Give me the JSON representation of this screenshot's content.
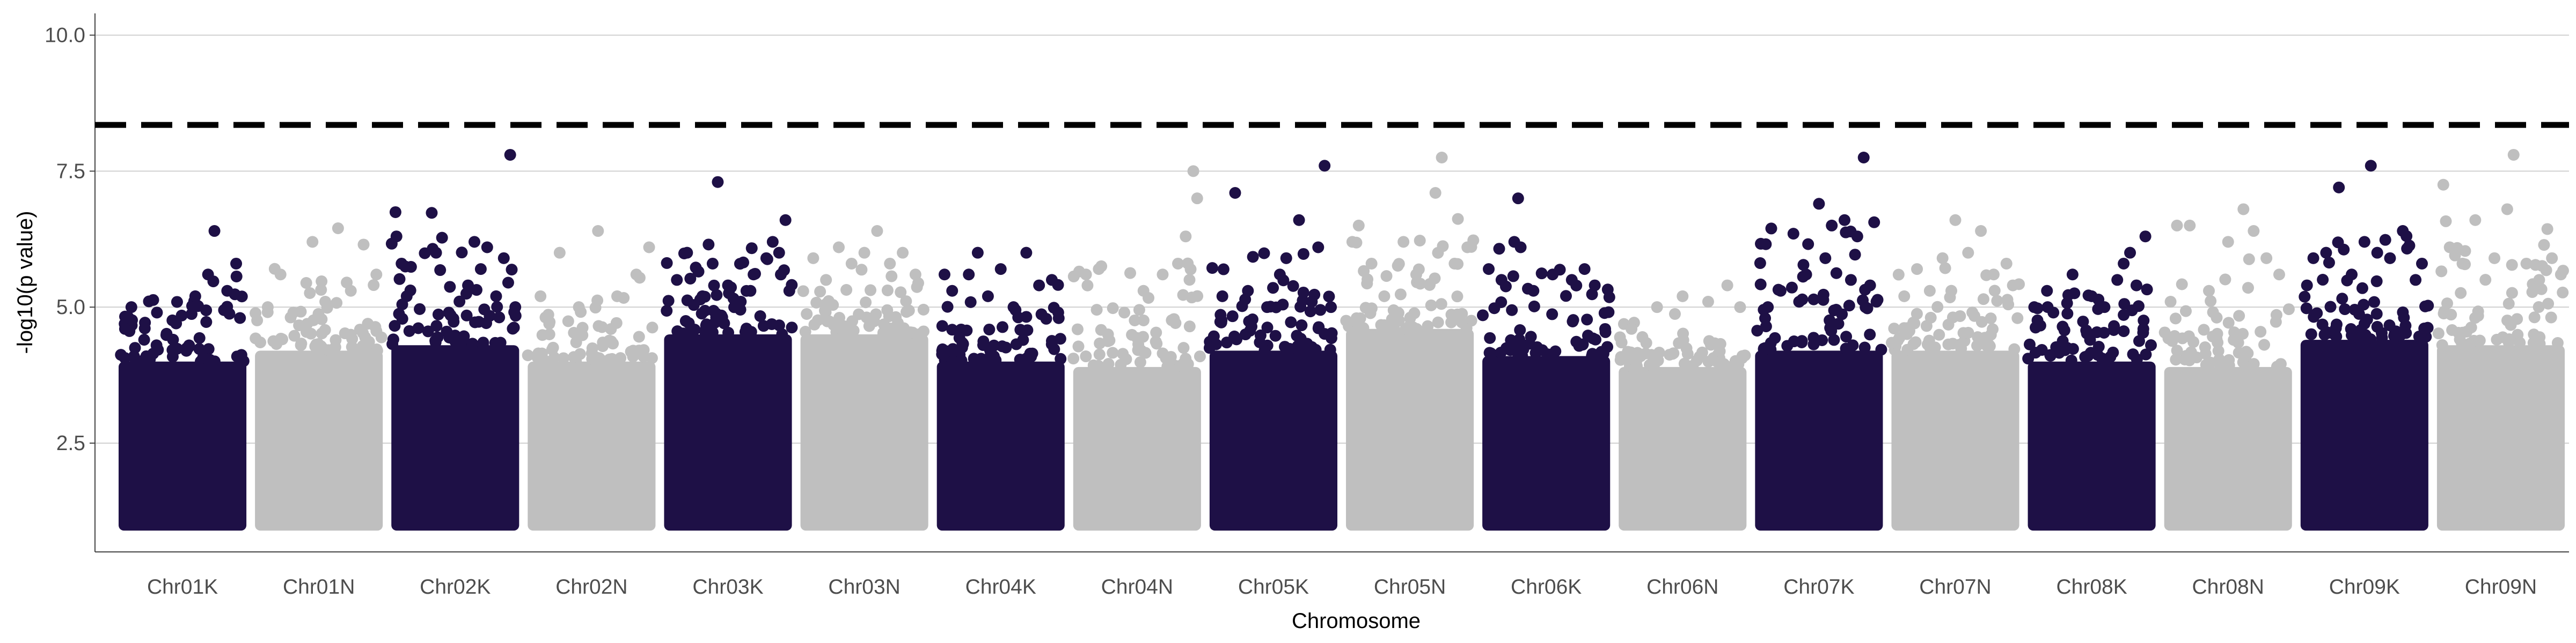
{
  "chart_data": {
    "type": "scatter",
    "subtype": "manhattan",
    "title": "",
    "xlabel": "Chromosome",
    "ylabel": "-log10(p value)",
    "ylim": [
      0.5,
      10.4
    ],
    "yticks": [
      2.5,
      5.0,
      7.5,
      10.0
    ],
    "ytick_labels": [
      "2.5",
      "5.0",
      "7.5",
      "10.0"
    ],
    "grid": "horizontal-major",
    "threshold": 8.35,
    "colors": {
      "odd": "#1e1046",
      "even": "#bfbfbf",
      "threshold": "#000000"
    },
    "categories": [
      "Chr01K",
      "Chr01N",
      "Chr02K",
      "Chr02N",
      "Chr03K",
      "Chr03N",
      "Chr04K",
      "Chr04N",
      "Chr05K",
      "Chr05N",
      "Chr06K",
      "Chr06N",
      "Chr07K",
      "Chr07N",
      "Chr08K",
      "Chr08N",
      "Chr09K",
      "Chr09N"
    ],
    "chromosomes": [
      {
        "name": "Chr01K",
        "body_max": 4.0,
        "max": 6.4,
        "points": [
          [
            0.05,
            4.6
          ],
          [
            0.1,
            5.0
          ],
          [
            0.2,
            4.4
          ],
          [
            0.3,
            4.9
          ],
          [
            0.45,
            4.7
          ],
          [
            0.6,
            5.2
          ],
          [
            0.7,
            5.6
          ],
          [
            0.75,
            6.4
          ],
          [
            0.85,
            5.3
          ],
          [
            0.92,
            5.8
          ],
          [
            0.95,
            4.8
          ]
        ]
      },
      {
        "name": "Chr01N",
        "body_max": 4.2,
        "max": 6.45,
        "points": [
          [
            0.1,
            5.0
          ],
          [
            0.2,
            5.6
          ],
          [
            0.3,
            4.9
          ],
          [
            0.45,
            6.2
          ],
          [
            0.55,
            5.1
          ],
          [
            0.65,
            6.45
          ],
          [
            0.75,
            5.3
          ],
          [
            0.85,
            6.15
          ],
          [
            0.95,
            5.6
          ]
        ]
      },
      {
        "name": "Chr02K",
        "body_max": 4.3,
        "max": 7.8,
        "points": [
          [
            0.04,
            6.3
          ],
          [
            0.08,
            5.8
          ],
          [
            0.12,
            5.2
          ],
          [
            0.35,
            6.0
          ],
          [
            0.45,
            4.9
          ],
          [
            0.6,
            5.4
          ],
          [
            0.65,
            6.2
          ],
          [
            0.7,
            5.7
          ],
          [
            0.75,
            6.1
          ],
          [
            0.82,
            5.2
          ],
          [
            0.88,
            5.9
          ],
          [
            0.93,
            7.8
          ],
          [
            0.97,
            5.0
          ]
        ]
      },
      {
        "name": "Chr02N",
        "body_max": 4.0,
        "max": 6.4,
        "points": [
          [
            0.1,
            5.2
          ],
          [
            0.25,
            6.0
          ],
          [
            0.4,
            5.0
          ],
          [
            0.55,
            6.4
          ],
          [
            0.7,
            5.2
          ],
          [
            0.85,
            5.6
          ],
          [
            0.95,
            6.1
          ]
        ]
      },
      {
        "name": "Chr03K",
        "body_max": 4.5,
        "max": 7.3,
        "points": [
          [
            0.1,
            5.5
          ],
          [
            0.18,
            6.0
          ],
          [
            0.3,
            5.2
          ],
          [
            0.38,
            5.8
          ],
          [
            0.42,
            7.3
          ],
          [
            0.5,
            5.4
          ],
          [
            0.6,
            5.1
          ],
          [
            0.7,
            5.6
          ],
          [
            0.8,
            5.9
          ],
          [
            0.85,
            6.2
          ],
          [
            0.9,
            6.0
          ],
          [
            0.95,
            6.6
          ],
          [
            0.98,
            5.3
          ]
        ]
      },
      {
        "name": "Chr03N",
        "body_max": 4.5,
        "max": 6.4,
        "points": [
          [
            0.1,
            5.9
          ],
          [
            0.2,
            5.5
          ],
          [
            0.3,
            6.1
          ],
          [
            0.4,
            5.8
          ],
          [
            0.5,
            6.0
          ],
          [
            0.6,
            6.4
          ],
          [
            0.7,
            5.8
          ],
          [
            0.8,
            6.0
          ],
          [
            0.9,
            5.6
          ]
        ]
      },
      {
        "name": "Chr04K",
        "body_max": 4.0,
        "max": 6.0,
        "points": [
          [
            0.06,
            5.6
          ],
          [
            0.12,
            5.3
          ],
          [
            0.25,
            5.6
          ],
          [
            0.32,
            6.0
          ],
          [
            0.4,
            5.2
          ],
          [
            0.5,
            5.7
          ],
          [
            0.6,
            5.0
          ],
          [
            0.7,
            6.0
          ],
          [
            0.8,
            5.4
          ],
          [
            0.9,
            5.5
          ],
          [
            0.95,
            4.9
          ]
        ]
      },
      {
        "name": "Chr04N",
        "body_max": 3.9,
        "max": 7.5,
        "points": [
          [
            0.1,
            5.6
          ],
          [
            0.2,
            5.7
          ],
          [
            0.4,
            4.9
          ],
          [
            0.55,
            5.3
          ],
          [
            0.7,
            5.6
          ],
          [
            0.82,
            5.8
          ],
          [
            0.88,
            6.3
          ],
          [
            0.94,
            7.5
          ],
          [
            0.97,
            7.0
          ]
        ]
      },
      {
        "name": "Chr05K",
        "body_max": 4.2,
        "max": 7.6,
        "points": [
          [
            0.1,
            5.2
          ],
          [
            0.2,
            7.1
          ],
          [
            0.3,
            5.3
          ],
          [
            0.45,
            5.0
          ],
          [
            0.55,
            5.6
          ],
          [
            0.6,
            5.9
          ],
          [
            0.7,
            6.6
          ],
          [
            0.8,
            5.1
          ],
          [
            0.85,
            6.1
          ],
          [
            0.9,
            7.6
          ],
          [
            0.95,
            5.0
          ]
        ]
      },
      {
        "name": "Chr05N",
        "body_max": 4.6,
        "max": 7.75,
        "points": [
          [
            0.05,
            6.2
          ],
          [
            0.1,
            6.5
          ],
          [
            0.2,
            5.8
          ],
          [
            0.3,
            5.2
          ],
          [
            0.45,
            6.2
          ],
          [
            0.55,
            5.6
          ],
          [
            0.7,
            7.1
          ],
          [
            0.75,
            7.75
          ],
          [
            0.85,
            5.8
          ],
          [
            0.95,
            6.1
          ]
        ]
      },
      {
        "name": "Chr06K",
        "body_max": 4.1,
        "max": 7.0,
        "points": [
          [
            0.05,
            5.7
          ],
          [
            0.15,
            5.5
          ],
          [
            0.25,
            6.2
          ],
          [
            0.28,
            7.0
          ],
          [
            0.3,
            6.1
          ],
          [
            0.4,
            5.3
          ],
          [
            0.55,
            5.6
          ],
          [
            0.7,
            5.5
          ],
          [
            0.8,
            5.7
          ],
          [
            0.88,
            5.4
          ]
        ]
      },
      {
        "name": "Chr06N",
        "body_max": 3.9,
        "max": 5.4,
        "points": [
          [
            0.1,
            4.6
          ],
          [
            0.3,
            5.0
          ],
          [
            0.5,
            5.2
          ],
          [
            0.7,
            5.1
          ],
          [
            0.85,
            5.4
          ],
          [
            0.95,
            5.0
          ]
        ]
      },
      {
        "name": "Chr07K",
        "body_max": 4.2,
        "max": 7.75,
        "points": [
          [
            0.1,
            5.0
          ],
          [
            0.2,
            5.3
          ],
          [
            0.3,
            6.35
          ],
          [
            0.4,
            5.6
          ],
          [
            0.5,
            6.9
          ],
          [
            0.55,
            5.9
          ],
          [
            0.6,
            6.5
          ],
          [
            0.7,
            6.6
          ],
          [
            0.75,
            5.5
          ],
          [
            0.8,
            6.3
          ],
          [
            0.85,
            7.75
          ],
          [
            0.9,
            5.4
          ],
          [
            0.95,
            5.1
          ]
        ]
      },
      {
        "name": "Chr07N",
        "body_max": 4.2,
        "max": 6.6,
        "points": [
          [
            0.1,
            5.2
          ],
          [
            0.2,
            5.7
          ],
          [
            0.3,
            5.3
          ],
          [
            0.4,
            5.9
          ],
          [
            0.5,
            6.6
          ],
          [
            0.6,
            6.0
          ],
          [
            0.7,
            6.4
          ],
          [
            0.8,
            5.6
          ],
          [
            0.9,
            5.8
          ],
          [
            0.95,
            5.4
          ]
        ]
      },
      {
        "name": "Chr08K",
        "body_max": 4.0,
        "max": 6.3,
        "points": [
          [
            0.05,
            5.0
          ],
          [
            0.15,
            5.3
          ],
          [
            0.2,
            4.9
          ],
          [
            0.35,
            5.6
          ],
          [
            0.5,
            5.2
          ],
          [
            0.6,
            5.0
          ],
          [
            0.7,
            5.5
          ],
          [
            0.75,
            5.8
          ],
          [
            0.8,
            6.0
          ],
          [
            0.85,
            5.4
          ],
          [
            0.92,
            6.3
          ]
        ]
      },
      {
        "name": "Chr08N",
        "body_max": 3.9,
        "max": 6.8,
        "points": [
          [
            0.05,
            5.1
          ],
          [
            0.1,
            6.5
          ],
          [
            0.2,
            6.5
          ],
          [
            0.35,
            5.3
          ],
          [
            0.5,
            6.2
          ],
          [
            0.62,
            6.8
          ],
          [
            0.7,
            6.4
          ],
          [
            0.8,
            5.9
          ],
          [
            0.9,
            5.6
          ]
        ]
      },
      {
        "name": "Chr09K",
        "body_max": 4.4,
        "max": 7.6,
        "points": [
          [
            0.05,
            5.4
          ],
          [
            0.1,
            5.9
          ],
          [
            0.2,
            6.0
          ],
          [
            0.3,
            7.2
          ],
          [
            0.4,
            5.6
          ],
          [
            0.5,
            6.2
          ],
          [
            0.55,
            7.6
          ],
          [
            0.6,
            6.0
          ],
          [
            0.7,
            5.9
          ],
          [
            0.8,
            6.4
          ],
          [
            0.9,
            5.5
          ],
          [
            0.95,
            5.8
          ]
        ]
      },
      {
        "name": "Chr09N",
        "body_max": 4.3,
        "max": 7.8,
        "points": [
          [
            0.05,
            7.25
          ],
          [
            0.1,
            6.1
          ],
          [
            0.2,
            5.8
          ],
          [
            0.3,
            6.6
          ],
          [
            0.45,
            5.9
          ],
          [
            0.55,
            6.8
          ],
          [
            0.6,
            7.8
          ],
          [
            0.7,
            5.8
          ],
          [
            0.8,
            5.5
          ],
          [
            0.9,
            5.9
          ],
          [
            0.97,
            5.6
          ]
        ]
      }
    ]
  }
}
